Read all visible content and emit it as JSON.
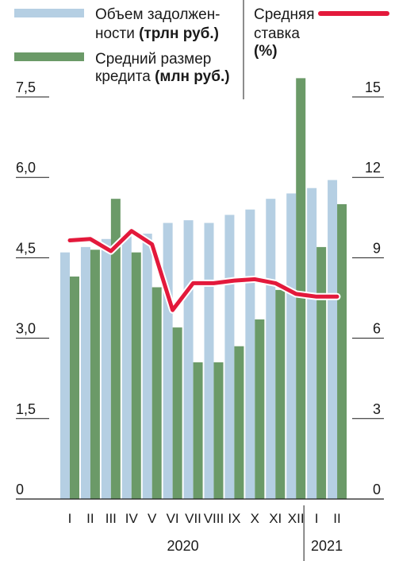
{
  "chart_data": {
    "type": "bar",
    "legend": {
      "debt": {
        "line1": "Объем задолжен-",
        "line2a": "ности ",
        "line2b": "(трлн руб.)",
        "color": "#b5cfe3"
      },
      "loan": {
        "line1": "Средний размер",
        "line2a": "кредита ",
        "line2b": "(млн руб.)",
        "color": "#6b9a68"
      },
      "rate": {
        "line1": "Средняя",
        "line2": "ставка",
        "line3": "(%)",
        "color": "#e3193b"
      }
    },
    "categories": [
      "I",
      "II",
      "III",
      "IV",
      "V",
      "VI",
      "VII",
      "VIII",
      "IX",
      "X",
      "XI",
      "XII",
      "I",
      "II"
    ],
    "years": [
      {
        "label": "2020",
        "from": 0,
        "to": 11
      },
      {
        "label": "2021",
        "from": 12,
        "to": 13
      }
    ],
    "left_axis": {
      "ylim": [
        0,
        7.5
      ],
      "ticks": [
        "0",
        "1,5",
        "3,0",
        "4,5",
        "6,0",
        "7,5"
      ],
      "tick_values": [
        0,
        1.5,
        3,
        4.5,
        6,
        7.5
      ]
    },
    "right_axis": {
      "ylim": [
        0,
        15
      ],
      "ticks": [
        "0",
        "3",
        "6",
        "9",
        "12",
        "15"
      ],
      "tick_values": [
        0,
        3,
        6,
        9,
        12,
        15
      ]
    },
    "series": [
      {
        "name": "Объем задолженности (трлн руб.)",
        "axis": "left",
        "kind": "bar",
        "values": [
          4.6,
          4.7,
          4.85,
          4.9,
          4.95,
          5.15,
          5.2,
          5.15,
          5.3,
          5.4,
          5.6,
          5.7,
          5.8,
          5.95
        ]
      },
      {
        "name": "Средний размер кредита (млн руб.)",
        "axis": "left",
        "kind": "bar",
        "values": [
          4.15,
          4.65,
          5.6,
          4.6,
          3.95,
          3.2,
          2.55,
          2.55,
          2.85,
          3.35,
          3.9,
          7.85,
          4.7,
          5.5
        ]
      },
      {
        "name": "Средняя ставка (%)",
        "axis": "right",
        "kind": "line",
        "values": [
          9.65,
          9.7,
          9.25,
          10.0,
          9.5,
          7.05,
          8.05,
          8.05,
          8.15,
          8.2,
          8.05,
          7.65,
          7.55,
          7.55
        ]
      }
    ]
  }
}
